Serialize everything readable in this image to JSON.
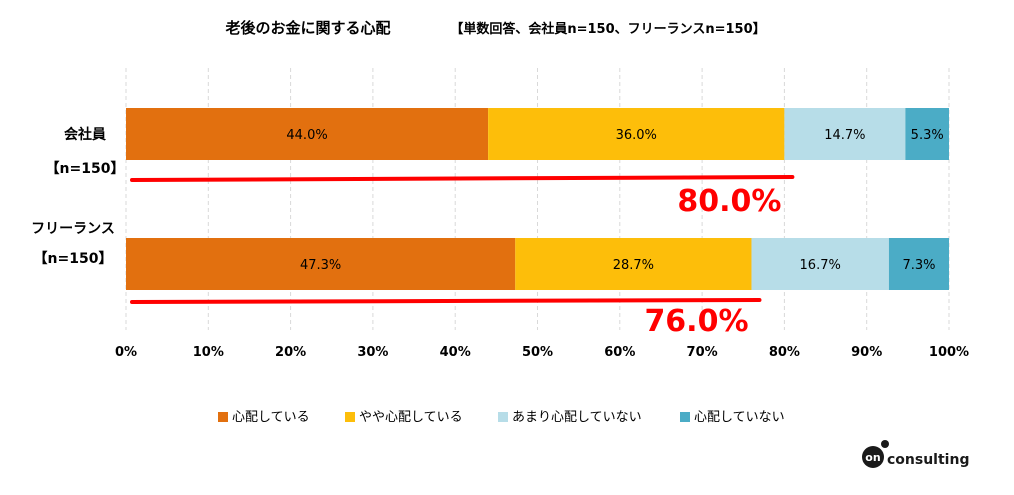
{
  "chart_data": {
    "type": "bar",
    "orientation": "horizontal",
    "stacked": true,
    "title": "老後のお金に関する心配",
    "subtitle": "【単数回答、会社員n=150、フリーランスn=150】",
    "categories": [
      {
        "name": "会社員",
        "n": "【n=150】"
      },
      {
        "name": "フリーランス",
        "n": "【n=150】"
      }
    ],
    "series": [
      {
        "name": "心配している",
        "values": [
          44.0,
          47.3
        ],
        "labels": [
          "44.0%",
          "47.3%"
        ],
        "color": "#E2700F"
      },
      {
        "name": "やや心配している",
        "values": [
          36.0,
          28.7
        ],
        "labels": [
          "36.0%",
          "28.7%"
        ],
        "color": "#FDBE0A"
      },
      {
        "name": "あまり心配していない",
        "values": [
          14.7,
          16.7
        ],
        "labels": [
          "14.7%",
          "16.7%"
        ],
        "color": "#B7DDE8"
      },
      {
        "name": "心配していない",
        "values": [
          5.3,
          7.3
        ],
        "labels": [
          "5.3%",
          "7.3%"
        ],
        "color": "#4BACC6"
      }
    ],
    "xlim": [
      0,
      100
    ],
    "xticks": [
      "0%",
      "10%",
      "20%",
      "30%",
      "40%",
      "50%",
      "60%",
      "70%",
      "80%",
      "90%",
      "100%"
    ],
    "grid": "vertical dashed",
    "legend_position": "bottom",
    "annotations": [
      {
        "category": "会社員",
        "value": 80.0,
        "text": "80.0%",
        "color": "#FF0000"
      },
      {
        "category": "フリーランス",
        "value": 76.0,
        "text": "76.0%",
        "color": "#FF0000"
      }
    ]
  },
  "logo": {
    "mark": "on",
    "text": "consulting"
  }
}
